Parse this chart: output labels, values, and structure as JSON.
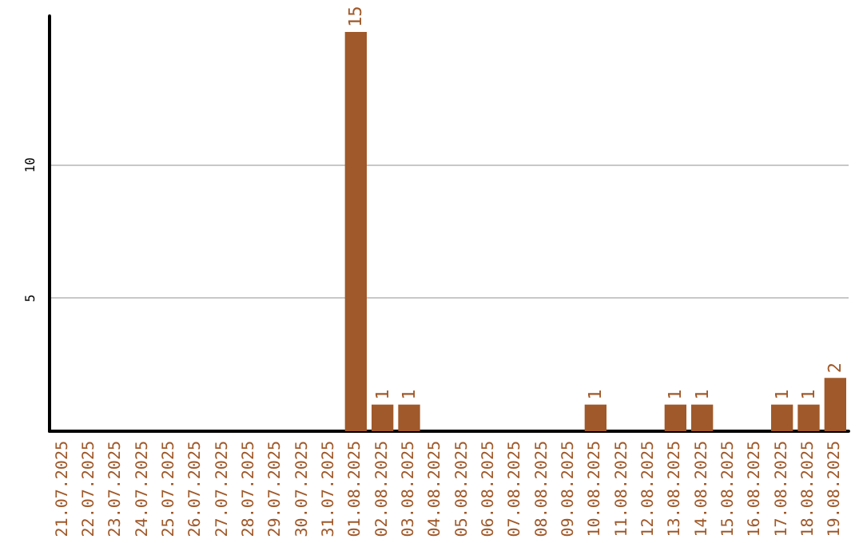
{
  "chart_data": {
    "type": "bar",
    "categories": [
      "21.07.2025",
      "22.07.2025",
      "23.07.2025",
      "24.07.2025",
      "25.07.2025",
      "26.07.2025",
      "27.07.2025",
      "28.07.2025",
      "29.07.2025",
      "30.07.2025",
      "31.07.2025",
      "01.08.2025",
      "02.08.2025",
      "03.08.2025",
      "04.08.2025",
      "05.08.2025",
      "06.08.2025",
      "07.08.2025",
      "08.08.2025",
      "09.08.2025",
      "10.08.2025",
      "11.08.2025",
      "12.08.2025",
      "13.08.2025",
      "14.08.2025",
      "15.08.2025",
      "16.08.2025",
      "17.08.2025",
      "18.08.2025",
      "19.08.2025"
    ],
    "values": [
      0,
      0,
      0,
      0,
      0,
      0,
      0,
      0,
      0,
      0,
      0,
      15,
      1,
      1,
      0,
      0,
      0,
      0,
      0,
      0,
      1,
      0,
      0,
      1,
      1,
      0,
      0,
      1,
      1,
      2
    ],
    "value_labels": [
      null,
      null,
      null,
      null,
      null,
      null,
      null,
      null,
      null,
      null,
      null,
      "15",
      "1",
      "1",
      null,
      null,
      null,
      null,
      null,
      null,
      "1",
      null,
      null,
      "1",
      "1",
      null,
      null,
      "1",
      "1",
      "2"
    ],
    "color": "#a0592a",
    "ylim": [
      0,
      15.6
    ],
    "yticks": [
      5,
      10
    ],
    "grid": "y"
  }
}
